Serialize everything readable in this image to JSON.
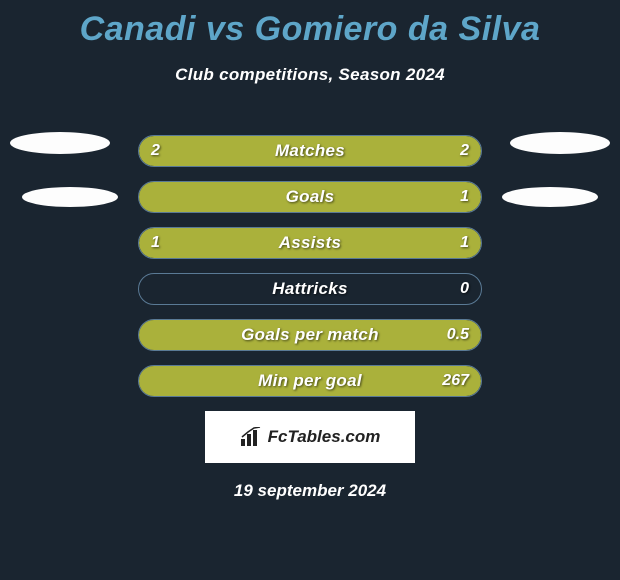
{
  "title": "Canadi vs Gomiero da Silva",
  "subtitle": "Club competitions, Season 2024",
  "date": "19 september 2024",
  "watermark_text": "FcTables.com",
  "colors": {
    "background": "#1a2530",
    "title": "#5ea6c9",
    "bar_fill": "#aab13b",
    "bar_border": "#5a7a95",
    "text": "#ffffff",
    "avatar": "#fdfdfd"
  },
  "stats": [
    {
      "label": "Matches",
      "left_val": "2",
      "right_val": "2",
      "left_pct": 50,
      "right_pct": 50
    },
    {
      "label": "Goals",
      "left_val": "",
      "right_val": "1",
      "left_pct": 0,
      "right_pct": 100
    },
    {
      "label": "Assists",
      "left_val": "1",
      "right_val": "1",
      "left_pct": 50,
      "right_pct": 50
    },
    {
      "label": "Hattricks",
      "left_val": "",
      "right_val": "0",
      "left_pct": 0,
      "right_pct": 0
    },
    {
      "label": "Goals per match",
      "left_val": "",
      "right_val": "0.5",
      "left_pct": 0,
      "right_pct": 100
    },
    {
      "label": "Min per goal",
      "left_val": "",
      "right_val": "267",
      "left_pct": 0,
      "right_pct": 100
    }
  ]
}
